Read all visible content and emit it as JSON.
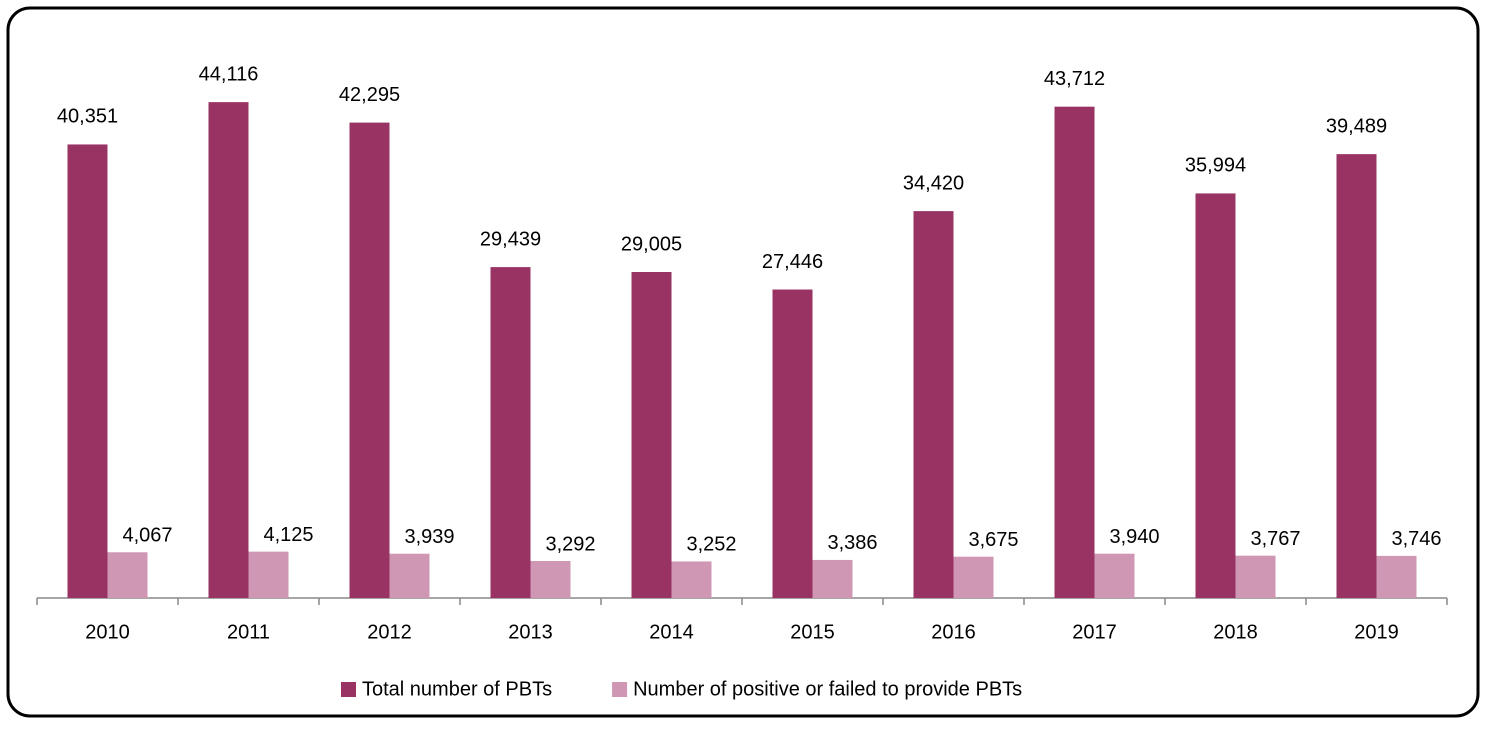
{
  "chart_data": {
    "type": "bar",
    "categories": [
      "2010",
      "2011",
      "2012",
      "2013",
      "2014",
      "2015",
      "2016",
      "2017",
      "2018",
      "2019"
    ],
    "series": [
      {
        "name": "Total number of PBTs",
        "color": "#983363",
        "values": [
          40351,
          44116,
          42295,
          29439,
          29005,
          27446,
          34420,
          43712,
          35994,
          39489
        ],
        "value_labels": [
          "40,351",
          "44,116",
          "42,295",
          "29,439",
          "29,005",
          "27,446",
          "34,420",
          "43,712",
          "35,994",
          "39,489"
        ]
      },
      {
        "name": "Number of positive or failed to provide PBTs",
        "color": "#cf97b3",
        "values": [
          4067,
          4125,
          3939,
          3292,
          3252,
          3386,
          3675,
          3940,
          3767,
          3746
        ],
        "value_labels": [
          "4,067",
          "4,125",
          "3,939",
          "3,292",
          "3,252",
          "3,386",
          "3,675",
          "3,940",
          "3,767",
          "3,746"
        ]
      }
    ],
    "ylim": [
      0,
      50000
    ],
    "legend": "bottom"
  }
}
